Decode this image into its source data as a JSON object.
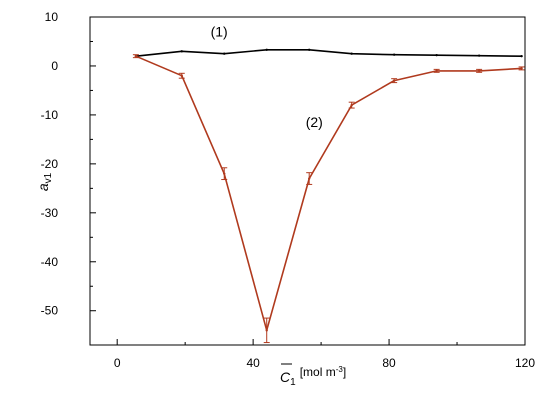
{
  "chart_data": {
    "type": "line",
    "title": "",
    "xlabel": {
      "main": "C",
      "sub": "1",
      "unit_prefix": "[mol m",
      "unit_exp": "-3",
      "unit_suffix": "]"
    },
    "ylabel": {
      "main": "a",
      "sub": "v1"
    },
    "xlim": [
      -8,
      120
    ],
    "ylim": [
      -57,
      10
    ],
    "xticks": [
      0,
      40,
      80,
      120
    ],
    "yticks": [
      10,
      0,
      -10,
      -20,
      -30,
      -40,
      -50
    ],
    "xtick_labels": [
      "0",
      "40",
      "80",
      "120"
    ],
    "ytick_labels": [
      "10",
      "0",
      "-10",
      "-20",
      "-30",
      "-40",
      "-50"
    ],
    "grid": false,
    "legend": "none",
    "series": [
      {
        "color": "#000000",
        "x": [
          5.5,
          19,
          31.5,
          44,
          56.5,
          69,
          81.5,
          94,
          106.5,
          119
        ],
        "y": [
          2.0,
          3.0,
          2.5,
          3.3,
          3.3,
          2.5,
          2.3,
          2.2,
          2.1,
          2.0
        ]
      },
      {
        "color": "#b03a1e",
        "x": [
          5.5,
          19,
          31.5,
          44,
          56.5,
          69,
          81.5,
          94,
          106.5,
          119
        ],
        "y": [
          2.0,
          -2.0,
          -22.0,
          -54.0,
          -23.0,
          -8.0,
          -3.0,
          -1.0,
          -1.0,
          -0.5
        ],
        "err": [
          0.3,
          0.5,
          1.2,
          2.5,
          1.2,
          0.6,
          0.4,
          0.3,
          0.3,
          0.3
        ]
      }
    ],
    "annotations": [
      {
        "text": "(1)",
        "x": 30,
        "y": 6
      },
      {
        "text": "(2)",
        "x": 58,
        "y": -12.5
      }
    ]
  }
}
